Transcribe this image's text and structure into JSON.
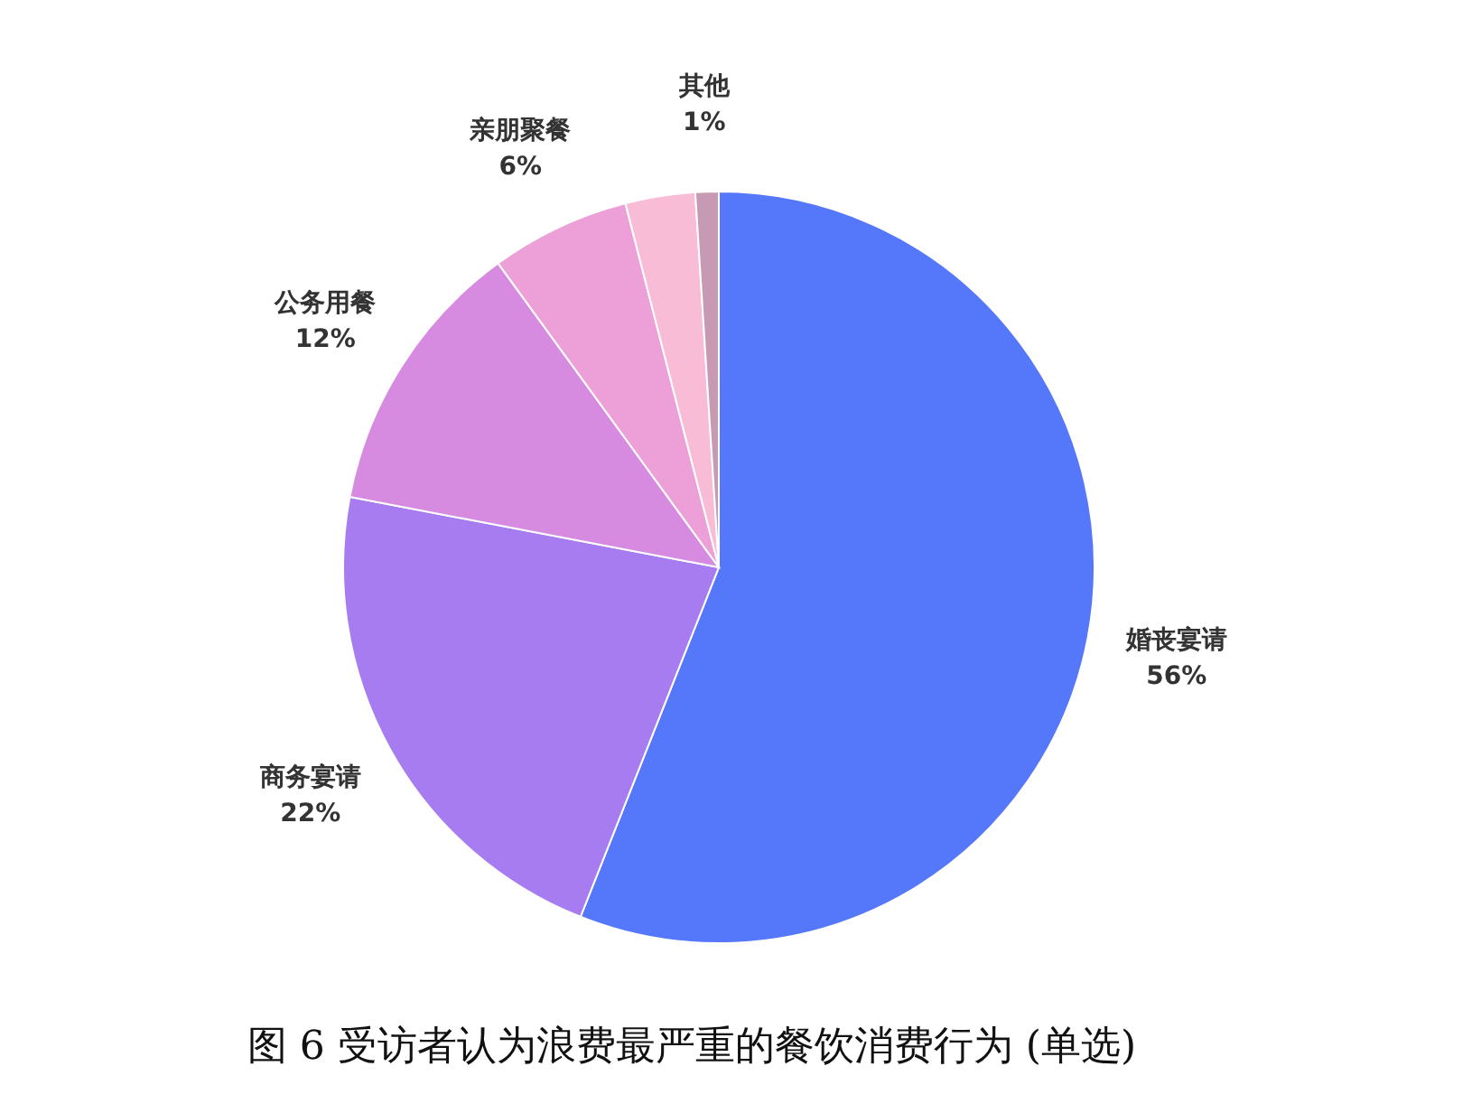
{
  "chart_data": {
    "type": "pie",
    "title": "图 6 受访者认为浪费最严重的餐饮消费行为 (单选)",
    "categories": [
      "婚丧宴请",
      "商务宴请",
      "公务用餐",
      "亲朋聚餐",
      null,
      "其他"
    ],
    "values": [
      56,
      22,
      12,
      6,
      3,
      1
    ],
    "colors": [
      "#5577fa",
      "#a67cf0",
      "#d68ae0",
      "#eda0d8",
      "#f9bcd6",
      "#c79ab4"
    ],
    "value_labels": [
      "56%",
      "22%",
      "12%",
      "6%",
      null,
      "1%"
    ]
  }
}
